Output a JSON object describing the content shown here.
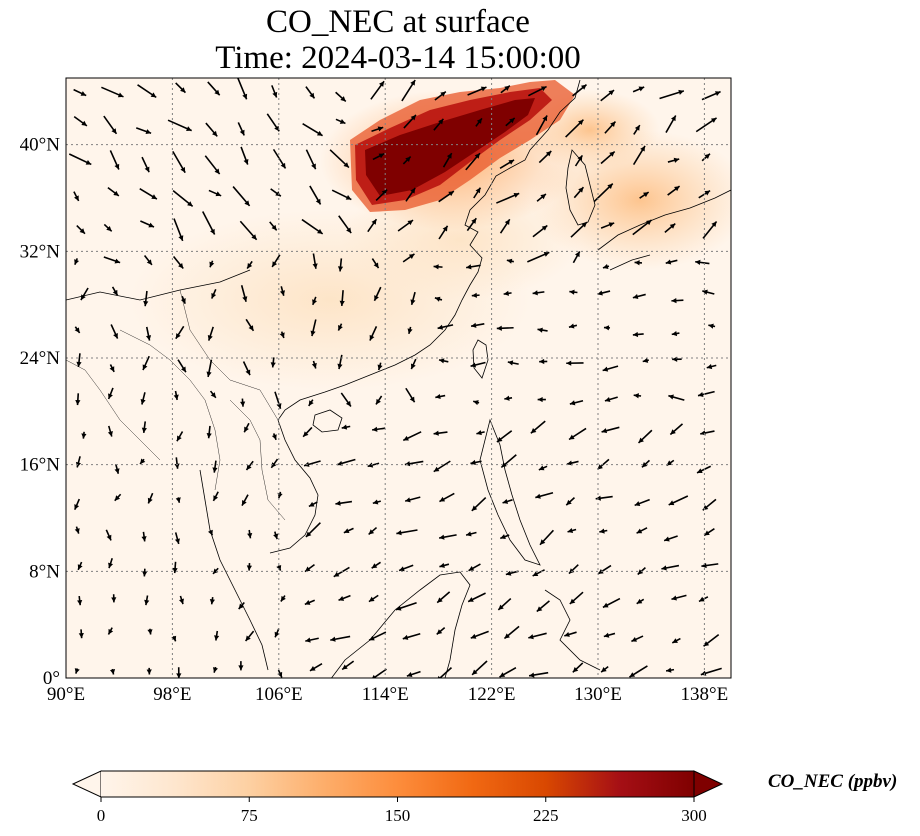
{
  "title_line1": "CO_NEC at surface",
  "title_line2": "Time: 2024-03-14 15:00:00",
  "map": {
    "lon_range": [
      90,
      140
    ],
    "lat_range": [
      0,
      45
    ],
    "lon_ticks": [
      {
        "value": 90,
        "label": "90°E"
      },
      {
        "value": 98,
        "label": "98°E"
      },
      {
        "value": 106,
        "label": "106°E"
      },
      {
        "value": 114,
        "label": "114°E"
      },
      {
        "value": 122,
        "label": "122°E"
      },
      {
        "value": 130,
        "label": "130°E"
      },
      {
        "value": 138,
        "label": "138°E"
      }
    ],
    "lat_ticks": [
      {
        "value": 0,
        "label": "0°"
      },
      {
        "value": 8,
        "label": "8°N"
      },
      {
        "value": 16,
        "label": "16°N"
      },
      {
        "value": 24,
        "label": "24°N"
      },
      {
        "value": 32,
        "label": "32°N"
      },
      {
        "value": 40,
        "label": "40°N"
      }
    ],
    "gridlines": true
  },
  "colorbar": {
    "label": "CO_NEC (ppbv)",
    "range": [
      0,
      300
    ],
    "ticks": [
      "0",
      "75",
      "150",
      "225",
      "300"
    ],
    "colormap": [
      "#fff5eb",
      "#fee6ce",
      "#fdd0a2",
      "#fdae6b",
      "#fd8d3c",
      "#f16913",
      "#d94801",
      "#a50f15",
      "#7f0000"
    ],
    "extend": "both"
  }
}
